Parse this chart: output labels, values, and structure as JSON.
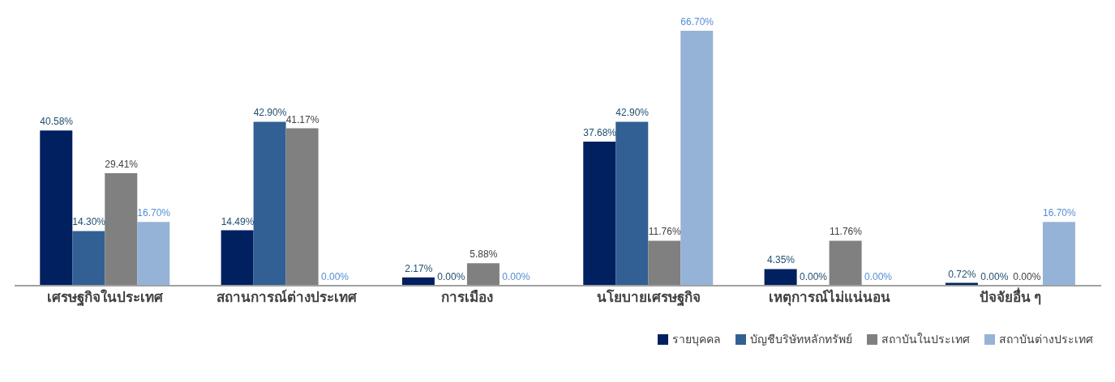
{
  "chart_data": {
    "type": "bar",
    "categories": [
      "เศรษฐกิจในประเทศ",
      "สถานการณ์ต่างประเทศ",
      "การเมือง",
      "นโยบายเศรษฐกิจ",
      "เหตุการณ์ไม่แน่นอน",
      "ปัจจัยอื่น ๆ"
    ],
    "series": [
      {
        "name": "รายบุคคล",
        "color": "#002060",
        "values": [
          40.58,
          14.49,
          2.17,
          37.68,
          4.35,
          0.72
        ],
        "value_labels": [
          "40.58%",
          "14.49%",
          "2.17%",
          "37.68%",
          "4.35%",
          "0.72%"
        ]
      },
      {
        "name": "บัญชีบริษัทหลักทรัพย์",
        "color": "#336094",
        "values": [
          14.3,
          42.9,
          0,
          42.9,
          0,
          0
        ],
        "value_labels": [
          "14.30%",
          "42.90%",
          "0.00%",
          "42.90%",
          "0.00%",
          "0.00%"
        ]
      },
      {
        "name": "สถาบันในประเทศ",
        "color": "#808080",
        "values": [
          29.41,
          41.17,
          5.88,
          11.76,
          11.76,
          0
        ],
        "value_labels": [
          "29.41%",
          "41.17%",
          "5.88%",
          "11.76%",
          "11.76%",
          "0.00%"
        ]
      },
      {
        "name": "สถาบันต่างประเทศ",
        "color": "#95b3d7",
        "values": [
          16.7,
          0,
          0,
          66.7,
          0,
          16.7
        ],
        "value_labels": [
          "16.70%",
          "0.00%",
          "0.00%",
          "66.70%",
          "0.00%",
          "16.70%"
        ]
      }
    ],
    "legend": "bottom right"
  }
}
